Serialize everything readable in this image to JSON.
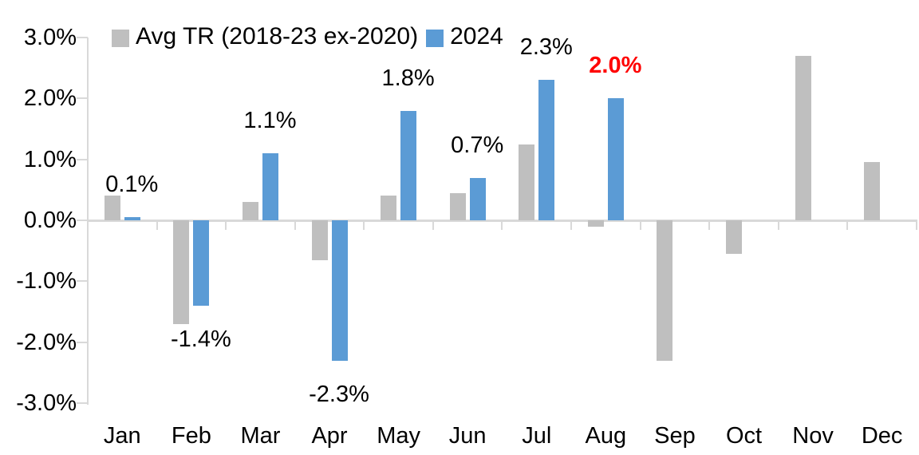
{
  "chart_data": {
    "type": "bar",
    "title": "",
    "categories": [
      "Jan",
      "Feb",
      "Mar",
      "Apr",
      "May",
      "Jun",
      "Jul",
      "Aug",
      "Sep",
      "Oct",
      "Nov",
      "Dec"
    ],
    "series": [
      {
        "name": "Avg TR (2018-23 ex-2020)",
        "color": "#BFBFBF",
        "values": [
          0.4,
          -1.7,
          0.3,
          -0.65,
          0.4,
          0.45,
          1.25,
          -0.1,
          -2.3,
          -0.55,
          2.7,
          0.95
        ]
      },
      {
        "name": "2024",
        "color": "#5B9BD5",
        "values": [
          0.05,
          -1.4,
          1.1,
          -2.3,
          1.8,
          0.7,
          2.3,
          2.0,
          null,
          null,
          null,
          null
        ],
        "data_labels": [
          {
            "text": "0.1%",
            "color": "#000000",
            "bold": false
          },
          {
            "text": "-1.4%",
            "color": "#000000",
            "bold": false
          },
          {
            "text": "1.1%",
            "color": "#000000",
            "bold": false
          },
          {
            "text": "-2.3%",
            "color": "#000000",
            "bold": false
          },
          {
            "text": "1.8%",
            "color": "#000000",
            "bold": false
          },
          {
            "text": "0.7%",
            "color": "#000000",
            "bold": false
          },
          {
            "text": "2.3%",
            "color": "#000000",
            "bold": false
          },
          {
            "text": "2.0%",
            "color": "#FF0000",
            "bold": true
          },
          null,
          null,
          null,
          null
        ]
      }
    ],
    "ylim": [
      -3,
      3
    ],
    "y_tick_labels": [
      "3.0%",
      "2.0%",
      "1.0%",
      "0.0%",
      "-1.0%",
      "-2.0%",
      "-3.0%"
    ],
    "grid": false,
    "legend_position": "top",
    "axis_color": "#D9D9D9",
    "text_color": "#000000",
    "negative_label_below_bar": true
  },
  "legend": {
    "items": [
      {
        "label": "Avg TR (2018-23 ex-2020)",
        "color": "#BFBFBF"
      },
      {
        "label": "2024",
        "color": "#5B9BD5"
      }
    ]
  }
}
